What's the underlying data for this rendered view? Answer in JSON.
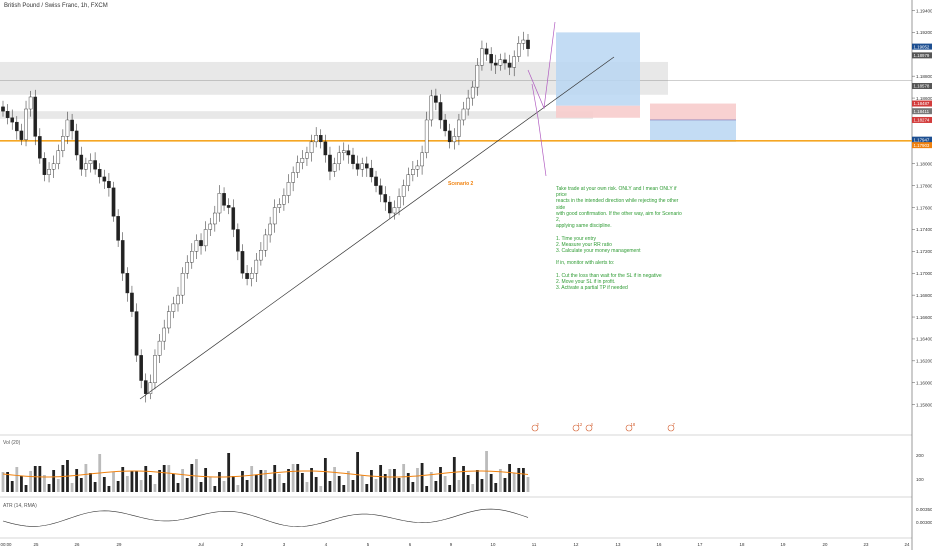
{
  "header": {
    "title": "British Pound / Swiss Franc, 1h, FXCM"
  },
  "chart_data": {
    "type": "candlestick",
    "title": "British Pound / Swiss Franc, 1h, FXCM",
    "ylim": [
      1.1555,
      1.1945
    ],
    "y_ticks": [
      "1.19400",
      "1.19200",
      "1.19000",
      "1.18800",
      "1.18600",
      "1.18400",
      "1.18200",
      "1.18000",
      "1.17800",
      "1.17600",
      "1.17400",
      "1.17200",
      "1.17000",
      "1.16800",
      "1.16600",
      "1.16400",
      "1.16200",
      "1.16000",
      "1.15800"
    ],
    "x_ticks": [
      "00:00",
      "25",
      "26",
      "29",
      "Jul",
      "2",
      "3",
      "4",
      "5",
      "6",
      "9",
      "10",
      "11",
      "12",
      "13",
      "16",
      "17",
      "18",
      "19",
      "20",
      "23",
      "24"
    ],
    "closes": [
      1.1848,
      1.1842,
      1.1838,
      1.183,
      1.1822,
      1.185,
      1.1861,
      1.1825,
      1.1805,
      1.179,
      1.1795,
      1.18,
      1.1812,
      1.1825,
      1.184,
      1.183,
      1.1808,
      1.1795,
      1.18,
      1.1803,
      1.1795,
      1.1788,
      1.1784,
      1.1778,
      1.1752,
      1.173,
      1.17,
      1.1682,
      1.1665,
      1.1625,
      1.1602,
      1.159,
      1.16,
      1.1625,
      1.1638,
      1.165,
      1.1665,
      1.1672,
      1.168,
      1.17,
      1.171,
      1.172,
      1.173,
      1.1725,
      1.174,
      1.1745,
      1.1755,
      1.1773,
      1.1762,
      1.176,
      1.174,
      1.172,
      1.17,
      1.1695,
      1.17,
      1.1712,
      1.1721,
      1.1735,
      1.1745,
      1.176,
      1.1763,
      1.1771,
      1.1783,
      1.1792,
      1.1801,
      1.1805,
      1.181,
      1.182,
      1.1826,
      1.182,
      1.1808,
      1.1793,
      1.18,
      1.181,
      1.1812,
      1.1808,
      1.18,
      1.1795,
      1.18,
      1.1796,
      1.1788,
      1.178,
      1.1772,
      1.1765,
      1.1755,
      1.176,
      1.177,
      1.178,
      1.179,
      1.1795,
      1.1798,
      1.181,
      1.184,
      1.1862,
      1.1856,
      1.184,
      1.183,
      1.182,
      1.1825,
      1.184,
      1.185,
      1.186,
      1.187,
      1.189,
      1.1905,
      1.19,
      1.1892,
      1.189,
      1.1895,
      1.1892,
      1.1888,
      1.1898,
      1.191,
      1.1913,
      1.1905
    ],
    "volume": {
      "label": "Vol (20)",
      "y_ticks": [
        "200",
        "100"
      ]
    },
    "atr": {
      "label": "ATR (14, RMA)",
      "y_ticks": [
        "0.00350",
        "0.00300"
      ]
    },
    "scale_labels": [
      "1.19052",
      "1.18979",
      "1.18578",
      "1.18487",
      "1.18411",
      "1.18274",
      "1.17947",
      "1.17903"
    ]
  },
  "annotations": {
    "scenario": "Scenario 2",
    "note": "Take trade at your own risk. ONLY and I mean ONLY if price\nreacts in the intended direction while rejecting the other side\nwith good confirmation. If the other way, aim for Scenario 2,\napplying same discipline.\n\n1. Time your entry\n2. Measure your RR ratio\n3. Calculate your money management\n\nIf in, monitor with alerts to:\n\n1. Cut the loss than wait for the SL if in negative\n2. Move your SL if in profit.\n3. Activate a partial TP if needed",
    "events": [
      "2",
      "12",
      "4",
      "18",
      "7"
    ]
  },
  "colors": {
    "support": "#f5a623",
    "target_zone": "#b9d6f2",
    "stop_zone": "#f7cccc",
    "note": "#2e9b33",
    "ma": "#f0820f"
  }
}
